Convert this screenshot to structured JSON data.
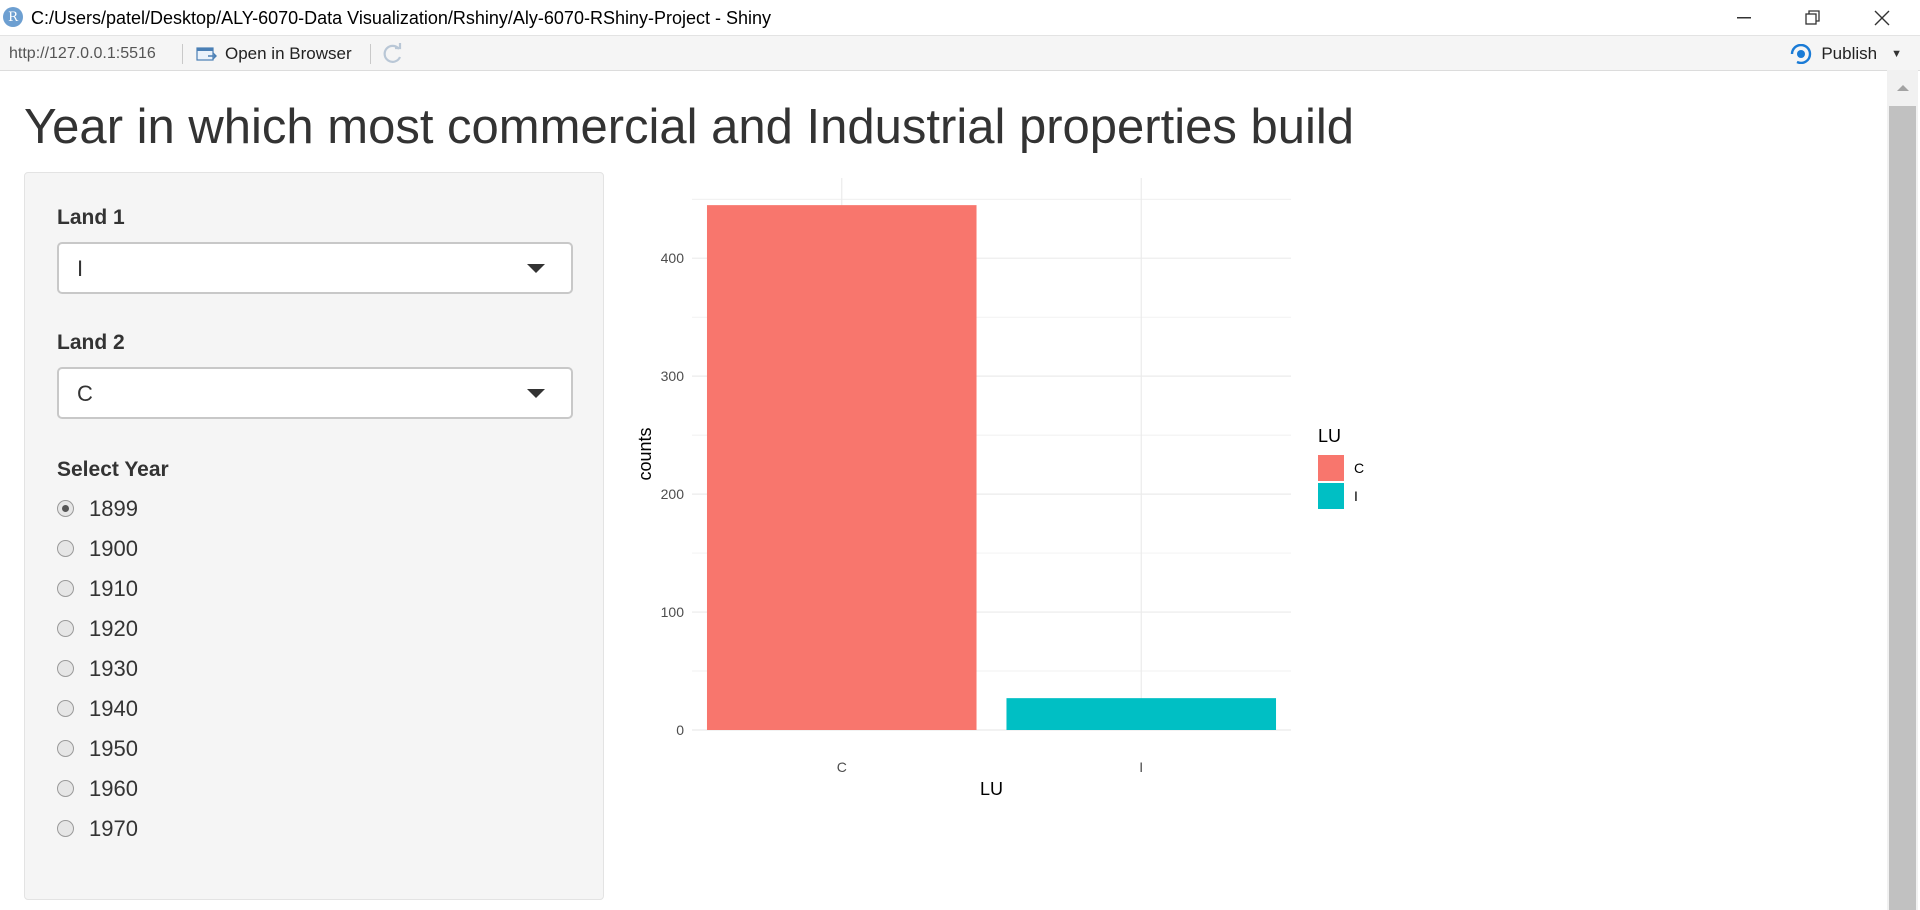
{
  "window": {
    "icon_letter": "R",
    "title": "C:/Users/patel/Desktop/ALY-6070-Data Visualization/Rshiny/Aly-6070-RShiny-Project - Shiny"
  },
  "toolbar": {
    "url": "http://127.0.0.1:5516",
    "open_in_browser": "Open in Browser",
    "publish": "Publish"
  },
  "page": {
    "title": "Year in which most commercial and Industrial properties build"
  },
  "sidebar": {
    "land1": {
      "label": "Land 1",
      "value": "I"
    },
    "land2": {
      "label": "Land 2",
      "value": "C"
    },
    "year": {
      "label": "Select Year",
      "selected": "1899",
      "options": [
        "1899",
        "1900",
        "1910",
        "1920",
        "1930",
        "1940",
        "1950",
        "1960",
        "1970"
      ]
    }
  },
  "colors": {
    "series_c": "#F8766D",
    "series_i": "#00BFC4",
    "grid": "#EBEBEB",
    "publish_accent": "#1a7bd6"
  },
  "chart_data": {
    "type": "bar",
    "categories": [
      "C",
      "I"
    ],
    "values": [
      445,
      27
    ],
    "colors": [
      "#F8766D",
      "#00BFC4"
    ],
    "xlabel": "LU",
    "ylabel": "counts",
    "ylim": [
      0,
      445
    ],
    "yticks": [
      0,
      100,
      200,
      300,
      400
    ],
    "grid": true,
    "legend": {
      "title": "LU",
      "entries": [
        "C",
        "I"
      ],
      "placement": "right"
    }
  }
}
